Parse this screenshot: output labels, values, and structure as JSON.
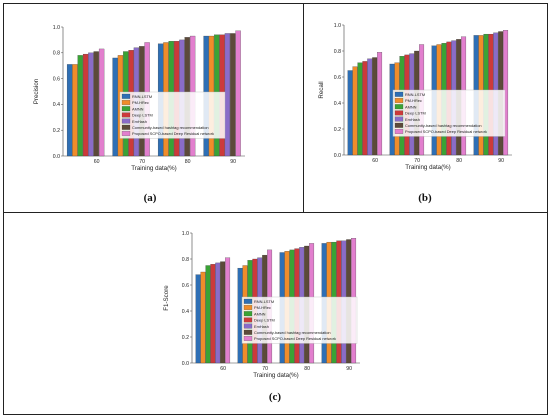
{
  "panels": [
    {
      "label": "(a)"
    },
    {
      "label": "(b)"
    },
    {
      "label": "(c)"
    }
  ],
  "colors": [
    "#2e6fb5",
    "#f08c2a",
    "#3aa335",
    "#cc3a3a",
    "#8a6cc8",
    "#5c4a3a",
    "#e27fce"
  ],
  "chart_data": [
    {
      "type": "bar",
      "title": "",
      "xlabel": "Training data(%)",
      "ylabel": "Precision",
      "ylim": [
        0,
        1.0
      ],
      "yticks": [
        "0.0",
        "0.2",
        "0.4",
        "0.6",
        "0.8",
        "1.0"
      ],
      "categories": [
        "60",
        "70",
        "80",
        "90"
      ],
      "legend_position": "center-right",
      "series": [
        {
          "name": "RNN-LSTM",
          "values": [
            0.71,
            0.76,
            0.87,
            0.93
          ]
        },
        {
          "name": "PM-HRec",
          "values": [
            0.71,
            0.78,
            0.88,
            0.93
          ]
        },
        {
          "name": "AMNN",
          "values": [
            0.78,
            0.81,
            0.89,
            0.94
          ]
        },
        {
          "name": "Deep LSTM",
          "values": [
            0.79,
            0.82,
            0.89,
            0.94
          ]
        },
        {
          "name": "EmHash",
          "values": [
            0.8,
            0.84,
            0.9,
            0.95
          ]
        },
        {
          "name": "Community-based hashtag recommendation",
          "values": [
            0.81,
            0.85,
            0.92,
            0.95
          ]
        },
        {
          "name": "Proposed SCPO-based Deep Residual network",
          "values": [
            0.83,
            0.88,
            0.93,
            0.97
          ]
        }
      ]
    },
    {
      "type": "bar",
      "title": "",
      "xlabel": "Training data(%)",
      "ylabel": "Recall",
      "ylim": [
        0,
        1.0
      ],
      "yticks": [
        "0.0",
        "0.2",
        "0.4",
        "0.6",
        "0.8",
        "1.0"
      ],
      "categories": [
        "60",
        "70",
        "80",
        "90"
      ],
      "legend_position": "center-right",
      "series": [
        {
          "name": "RNN-LSTM",
          "values": [
            0.65,
            0.7,
            0.84,
            0.92
          ]
        },
        {
          "name": "PM-HRec",
          "values": [
            0.68,
            0.71,
            0.85,
            0.92
          ]
        },
        {
          "name": "AMNN",
          "values": [
            0.71,
            0.76,
            0.86,
            0.93
          ]
        },
        {
          "name": "Deep LSTM",
          "values": [
            0.72,
            0.77,
            0.87,
            0.93
          ]
        },
        {
          "name": "EmHash",
          "values": [
            0.74,
            0.78,
            0.88,
            0.94
          ]
        },
        {
          "name": "Community-based hashtag recommendation",
          "values": [
            0.75,
            0.8,
            0.89,
            0.95
          ]
        },
        {
          "name": "Proposed SCPO-based Deep Residual network",
          "values": [
            0.79,
            0.85,
            0.91,
            0.96
          ]
        }
      ]
    },
    {
      "type": "bar",
      "title": "",
      "xlabel": "Training data(%)",
      "ylabel": "F1-Score",
      "ylim": [
        0,
        1.0
      ],
      "yticks": [
        "0.0",
        "0.2",
        "0.4",
        "0.6",
        "0.8",
        "1.0"
      ],
      "categories": [
        "60",
        "70",
        "80",
        "90"
      ],
      "legend_position": "center-right",
      "series": [
        {
          "name": "RNN-LSTM",
          "values": [
            0.68,
            0.73,
            0.85,
            0.92
          ]
        },
        {
          "name": "PM-HRec",
          "values": [
            0.7,
            0.75,
            0.86,
            0.93
          ]
        },
        {
          "name": "AMNN",
          "values": [
            0.75,
            0.79,
            0.87,
            0.93
          ]
        },
        {
          "name": "Deep LSTM",
          "values": [
            0.76,
            0.8,
            0.88,
            0.94
          ]
        },
        {
          "name": "EmHash",
          "values": [
            0.77,
            0.81,
            0.89,
            0.94
          ]
        },
        {
          "name": "Community-based hashtag recommendation",
          "values": [
            0.78,
            0.83,
            0.9,
            0.95
          ]
        },
        {
          "name": "Proposed SCPO-based Deep Residual network",
          "values": [
            0.81,
            0.87,
            0.92,
            0.96
          ]
        }
      ]
    }
  ]
}
